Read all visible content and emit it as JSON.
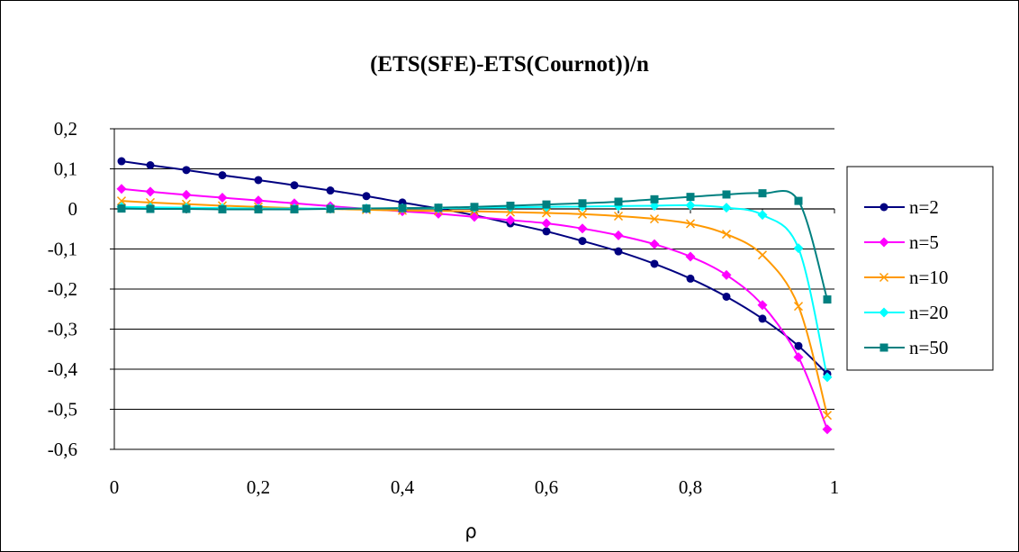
{
  "chart_data": {
    "type": "line",
    "title": "(ETS(SFE)-ETS(Cournot))/n",
    "xlabel": "ρ",
    "ylabel": "",
    "xlim": [
      0,
      1
    ],
    "ylim": [
      -0.6,
      0.2
    ],
    "x_ticks": [
      "0",
      "0,2",
      "0,4",
      "0,6",
      "0,8",
      "1"
    ],
    "y_ticks": [
      "0,2",
      "0,1",
      "0",
      "-0,1",
      "-0,2",
      "-0,3",
      "-0,4",
      "-0,5",
      "-0,6"
    ],
    "grid": true,
    "legend_position": "right",
    "x": [
      0.01,
      0.05,
      0.1,
      0.15,
      0.2,
      0.25,
      0.3,
      0.35,
      0.4,
      0.45,
      0.5,
      0.55,
      0.6,
      0.65,
      0.7,
      0.75,
      0.8,
      0.85,
      0.9,
      0.95,
      0.99
    ],
    "series": [
      {
        "name": "n=2",
        "color": "#000080",
        "marker": "circle",
        "values": [
          0.119,
          0.109,
          0.097,
          0.084,
          0.072,
          0.059,
          0.046,
          0.032,
          0.016,
          0.001,
          -0.016,
          -0.036,
          -0.056,
          -0.08,
          -0.106,
          -0.137,
          -0.174,
          -0.219,
          -0.274,
          -0.342,
          -0.412
        ]
      },
      {
        "name": "n=5",
        "color": "#FF00FF",
        "marker": "diamond",
        "values": [
          0.05,
          0.043,
          0.035,
          0.028,
          0.021,
          0.014,
          0.007,
          0.0,
          -0.006,
          -0.012,
          -0.02,
          -0.028,
          -0.036,
          -0.049,
          -0.066,
          -0.088,
          -0.119,
          -0.165,
          -0.24,
          -0.37,
          -0.55
        ]
      },
      {
        "name": "n=10",
        "color": "#FF9900",
        "marker": "x",
        "values": [
          0.02,
          0.016,
          0.012,
          0.008,
          0.005,
          0.002,
          0.0,
          -0.002,
          -0.004,
          -0.005,
          -0.006,
          -0.008,
          -0.01,
          -0.013,
          -0.018,
          -0.025,
          -0.037,
          -0.063,
          -0.115,
          -0.243,
          -0.515
        ]
      },
      {
        "name": "n=20",
        "color": "#00FFFF",
        "marker": "diamond",
        "values": [
          0.005,
          0.004,
          0.003,
          0.002,
          0.001,
          0.001,
          0.001,
          0.001,
          0.002,
          0.002,
          0.003,
          0.004,
          0.005,
          0.006,
          0.007,
          0.008,
          0.009,
          0.003,
          -0.015,
          -0.098,
          -0.42
        ]
      },
      {
        "name": "n=50",
        "color": "#008080",
        "marker": "square",
        "values": [
          0.001,
          0.0,
          0.0,
          -0.001,
          -0.001,
          -0.001,
          0.0,
          0.001,
          0.002,
          0.003,
          0.005,
          0.008,
          0.011,
          0.014,
          0.018,
          0.024,
          0.03,
          0.036,
          0.039,
          0.02,
          -0.226
        ]
      }
    ]
  }
}
